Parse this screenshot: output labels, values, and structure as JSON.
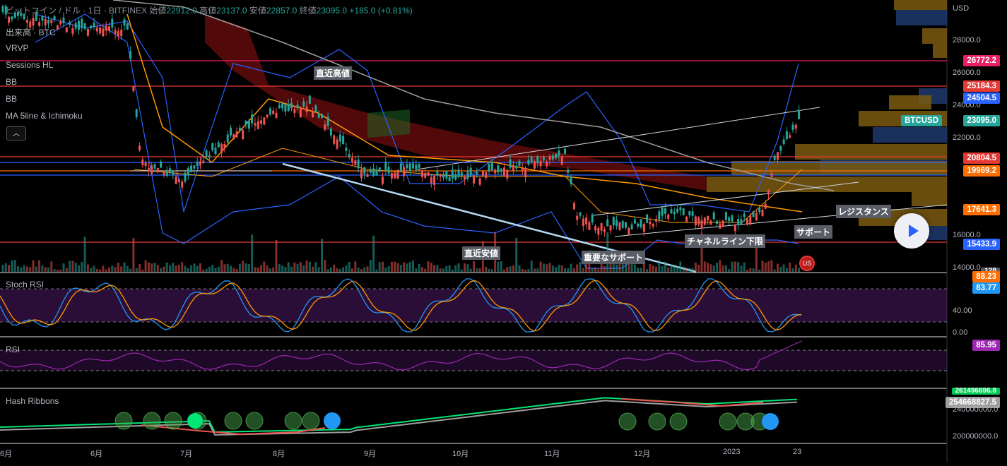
{
  "header": {
    "symbol_text": "ビットコイン / ドル",
    "interval": "1日",
    "exchange": "BITFINEX",
    "open_label": "始値",
    "open": "22912.0",
    "high_label": "高値",
    "high": "23137.0",
    "low_label": "安値",
    "low": "22857.0",
    "close_label": "終値",
    "close": "23095.0",
    "change": "+185.0 (+0.81%)"
  },
  "indicator_legend": [
    "出来高 · BTC",
    "VRVP",
    "Sessions HL",
    "BB",
    "BB",
    "MA 5line & Ichimoku"
  ],
  "collapse_icon": "chevron-up-icon",
  "price_axis": {
    "unit": "USD",
    "ticks": [
      "28000.0",
      "26000.0",
      "24000.0",
      "22000.0",
      "16000.0",
      "14000.0"
    ]
  },
  "price_tags": [
    {
      "label": "26772.2",
      "color": "#e91e63"
    },
    {
      "label": "25184.3",
      "color": "#e53935"
    },
    {
      "label": "24504.5",
      "color": "#2962ff"
    },
    {
      "label": "23095.0",
      "color": "#26a69a"
    },
    {
      "label": "20804.5",
      "color": "#e53935"
    },
    {
      "label": "19969.2",
      "color": "#ff6d00"
    },
    {
      "label": "17641.3",
      "color": "#ff6d00"
    },
    {
      "label": "15433.9",
      "color": "#2962ff"
    }
  ],
  "symbol_tag": "BTCUSD",
  "annotations": {
    "recent_high": "直近高値",
    "recent_low": "直近安値",
    "important_support": "重要なサポート",
    "resistance": "レジスタンス",
    "support": "サポート",
    "channel_break": "チャネルライン下限"
  },
  "stoch": {
    "label": "Stoch RSI",
    "ticks": [
      "40.00",
      "0.00"
    ],
    "tag_k": "88.23",
    "tag_d": "83.77",
    "tag_top": "128"
  },
  "rsi": {
    "label": "RSI",
    "tag": "85.95"
  },
  "hash": {
    "label": "Hash Ribbons",
    "tags": [
      "261496696.8",
      "254668827.5"
    ],
    "ticks": [
      "240000000.0",
      "200000000.0"
    ]
  },
  "months": [
    "6月",
    "6月",
    "7月",
    "8月",
    "9月",
    "10月",
    "11月",
    "12月",
    "2023",
    "23"
  ],
  "colors": {
    "bg": "#000000",
    "up": "#26a69a",
    "down": "#ef5350",
    "bb": "#2962ff",
    "ma_orange": "#ff9800",
    "ma_gray": "#9e9e9e"
  }
}
